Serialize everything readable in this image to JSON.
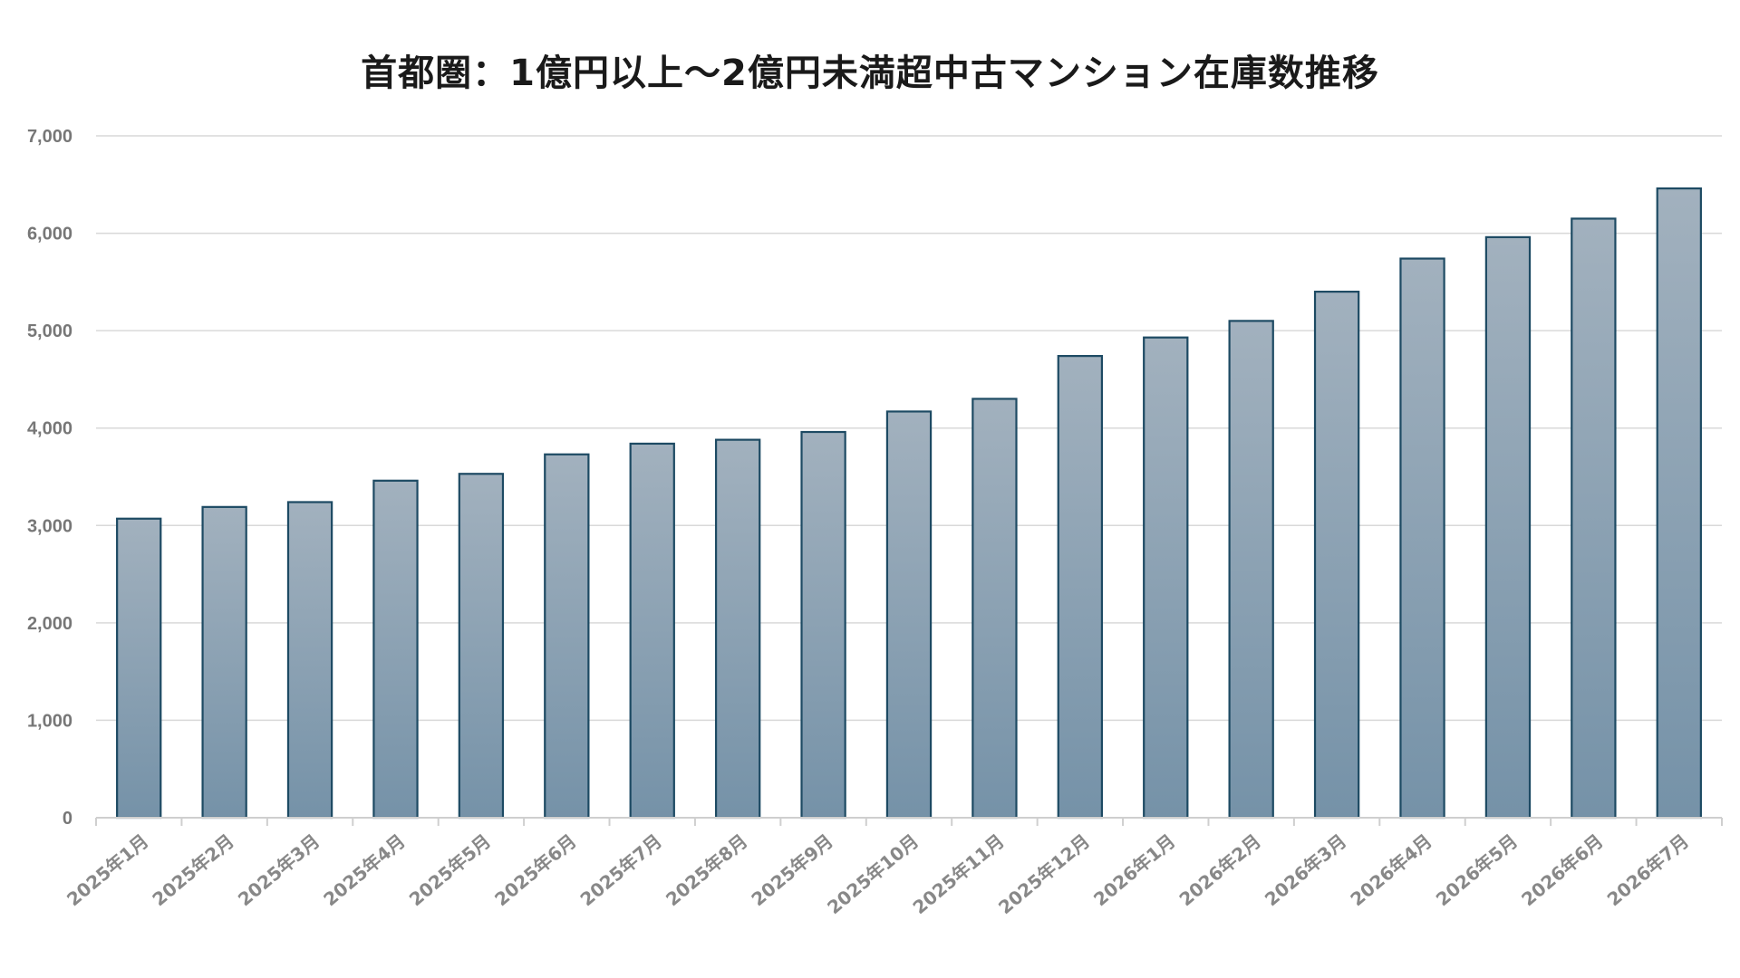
{
  "chart_data": {
    "type": "bar",
    "title": "首都圏：1億円以上～2億円未満超中古マンション在庫数推移",
    "xlabel": "",
    "ylabel": "",
    "categories": [
      "2025年1月",
      "2025年2月",
      "2025年3月",
      "2025年4月",
      "2025年5月",
      "2025年6月",
      "2025年7月",
      "2025年8月",
      "2025年9月",
      "2025年10月",
      "2025年11月",
      "2025年12月",
      "2026年1月",
      "2026年2月",
      "2026年3月",
      "2026年4月",
      "2026年5月",
      "2026年6月",
      "2026年7月"
    ],
    "values": [
      3070,
      3190,
      3240,
      3460,
      3530,
      3730,
      3840,
      3880,
      3960,
      4170,
      4300,
      4740,
      4930,
      5100,
      5400,
      5740,
      5960,
      6150,
      6460
    ],
    "ylim": [
      0,
      7000
    ],
    "yticks": [
      0,
      1000,
      2000,
      3000,
      4000,
      5000,
      6000,
      7000
    ],
    "ytick_labels": [
      "0",
      "1,000",
      "2,000",
      "3,000",
      "4,000",
      "5,000",
      "6,000",
      "7,000"
    ],
    "grid": true,
    "legend": "none",
    "colors": {
      "bar_top": "#a2b1be",
      "bar_bottom": "#7592a8",
      "bar_border": "#1d4a63",
      "grid": "#d9d9d9",
      "axis": "#cfcfcf"
    }
  }
}
